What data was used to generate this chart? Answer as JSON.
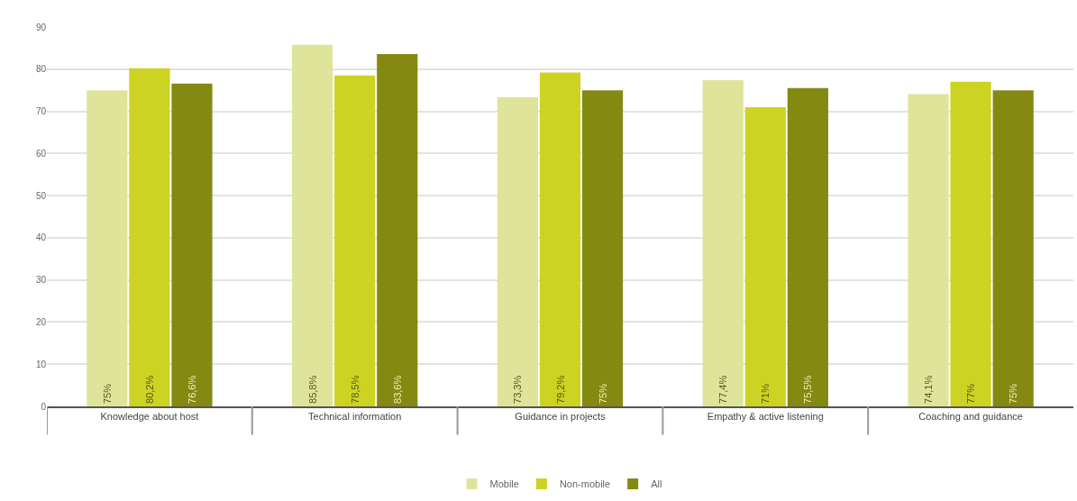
{
  "chart_data": {
    "type": "bar",
    "categories": [
      "Knowledge about host",
      "Technical information",
      "Guidance in projects",
      "Empathy & active listening",
      "Coaching and guidance"
    ],
    "series": [
      {
        "name": "Mobile",
        "color": "#dfe49b",
        "values": [
          75,
          85.8,
          73.3,
          77.4,
          74.1
        ],
        "value_labels": [
          "75%",
          "85,8%",
          "73,3%",
          "77,4%",
          "74,1%"
        ]
      },
      {
        "name": "Non-mobile",
        "color": "#ccd322",
        "values": [
          80.2,
          78.5,
          79.2,
          71,
          77
        ],
        "value_labels": [
          "80,2%",
          "78,5%",
          "79,2%",
          "71%",
          "77%"
        ]
      },
      {
        "name": "All",
        "color": "#848912",
        "values": [
          76.6,
          83.6,
          75,
          75.5,
          75
        ],
        "value_labels": [
          "76,6%",
          "83,6%",
          "75%",
          "75,5%",
          "75%"
        ]
      }
    ],
    "ylim": [
      0,
      90
    ],
    "yticks": [
      0,
      10,
      20,
      30,
      40,
      50,
      60,
      70,
      80,
      90
    ],
    "grid": "y",
    "legend": "bottom"
  }
}
